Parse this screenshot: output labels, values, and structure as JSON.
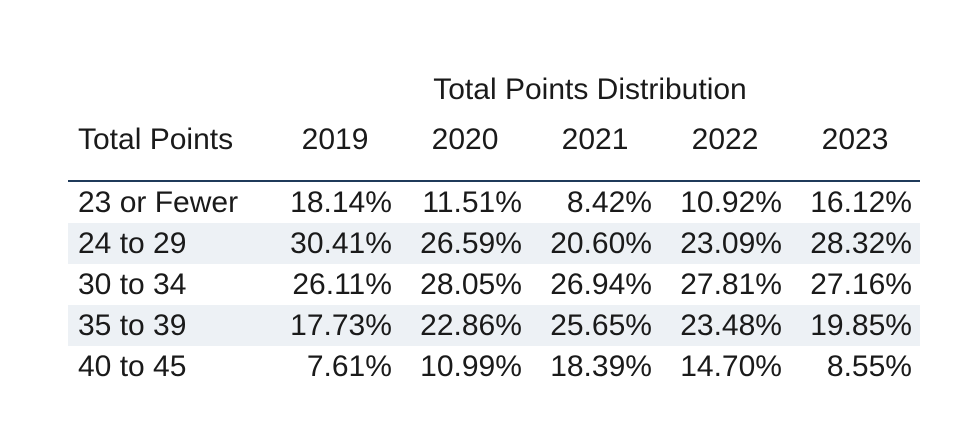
{
  "chart_data": {
    "type": "table",
    "title": "Total Points Distribution",
    "row_header": "Total Points",
    "columns": [
      "2019",
      "2020",
      "2021",
      "2022",
      "2023"
    ],
    "rows": [
      {
        "label": "23 or Fewer",
        "values": [
          "18.14%",
          "11.51%",
          "8.42%",
          "10.92%",
          "16.12%"
        ]
      },
      {
        "label": "24 to 29",
        "values": [
          "30.41%",
          "26.59%",
          "20.60%",
          "23.09%",
          "28.32%"
        ]
      },
      {
        "label": "30 to 34",
        "values": [
          "26.11%",
          "28.05%",
          "26.94%",
          "27.81%",
          "27.16%"
        ]
      },
      {
        "label": "35 to 39",
        "values": [
          "17.73%",
          "22.86%",
          "25.65%",
          "23.48%",
          "19.85%"
        ]
      },
      {
        "label": "40 to 45",
        "values": [
          "7.61%",
          "10.99%",
          "18.39%",
          "14.70%",
          "8.55%"
        ]
      }
    ]
  },
  "colors": {
    "divider": "#1f3a5a",
    "row_shading": "#edf1f5",
    "text": "#1a1a1a"
  }
}
